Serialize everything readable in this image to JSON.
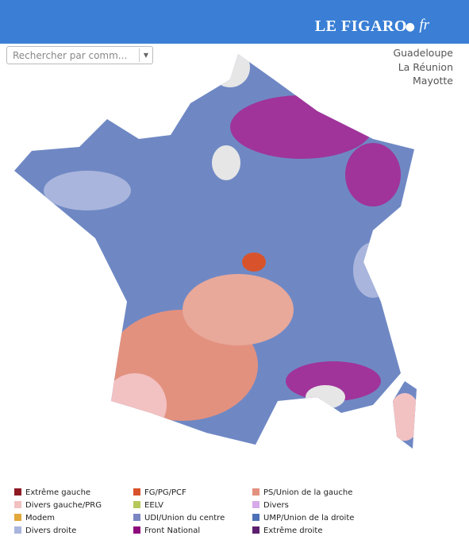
{
  "header": {
    "logo": "LE FIGARO",
    "logo_suffix": "fr"
  },
  "search": {
    "placeholder": "Rechercher par comm..."
  },
  "overseas_links": [
    "Guadeloupe",
    "La Réunion",
    "Mayotte"
  ],
  "legend": [
    {
      "label": "Extrême gauche",
      "color": "#8c1b24"
    },
    {
      "label": "FG/PG/PCF",
      "color": "#d8532b"
    },
    {
      "label": "PS/Union de la gauche",
      "color": "#e3917f"
    },
    {
      "label": "Divers gauche/PRG",
      "color": "#f2c1c2"
    },
    {
      "label": "EELV",
      "color": "#b6c85a"
    },
    {
      "label": "Divers",
      "color": "#d7aae8"
    },
    {
      "label": "Modem",
      "color": "#e1a83b"
    },
    {
      "label": "UDI/Union du centre",
      "color": "#7b85c1"
    },
    {
      "label": "UMP/Union de la droite",
      "color": "#4d70b6"
    },
    {
      "label": "Divers droite",
      "color": "#a9b5dc"
    },
    {
      "label": "Front National",
      "color": "#8e0b7c"
    },
    {
      "label": "Extrême droite",
      "color": "#5b1f6e"
    }
  ]
}
